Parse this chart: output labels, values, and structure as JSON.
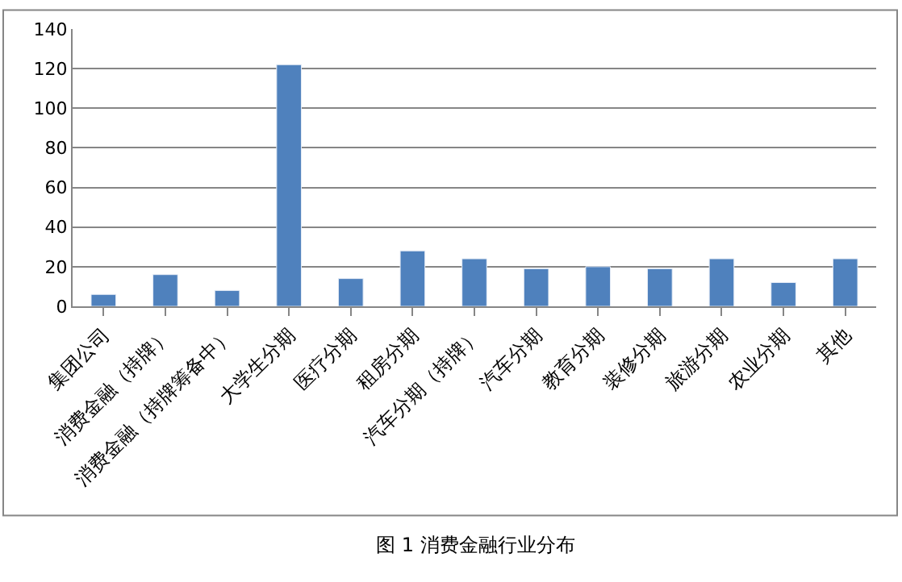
{
  "chart_data": {
    "type": "bar",
    "title": "图 1 消费金融行业分布",
    "categories": [
      "集团公司",
      "消费金融（持牌）",
      "消费金融（持牌筹备中）",
      "大学生分期",
      "医疗分期",
      "租房分期",
      "汽车分期（持牌）",
      "汽车分期",
      "教育分期",
      "装修分期",
      "旅游分期",
      "农业分期",
      "其他"
    ],
    "values": [
      6,
      16,
      8,
      122,
      14,
      28,
      24,
      19,
      20,
      19,
      24,
      12,
      24
    ],
    "color": "#4f81bd",
    "ylim": [
      0,
      140
    ],
    "yticks": [
      0,
      20,
      40,
      60,
      80,
      100,
      120,
      140
    ],
    "grid": "y"
  }
}
